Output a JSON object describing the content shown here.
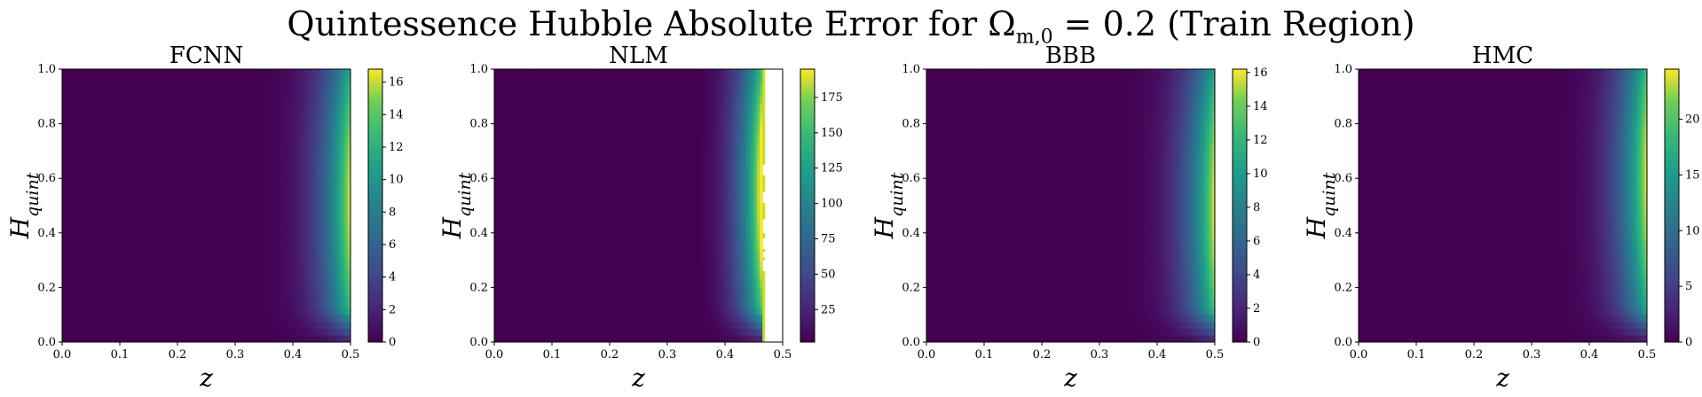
{
  "figure_title": "Quintessence Hubble Absolute Error for Ωm,0 = 0.2 (Train Region)",
  "chart_data": [
    {
      "type": "heatmap",
      "title": "FCNN",
      "xlabel": "z",
      "ylabel": "Hquint",
      "xlim": [
        0.0,
        0.5
      ],
      "ylim": [
        0.0,
        1.0
      ],
      "x_ticks": [
        "0.0",
        "0.1",
        "0.2",
        "0.3",
        "0.4",
        "0.5"
      ],
      "y_ticks": [
        "0.0",
        "0.2",
        "0.4",
        "0.6",
        "0.8",
        "1.0"
      ],
      "colorbar": {
        "min": 0,
        "max": 16.8,
        "ticks": [
          0,
          2,
          4,
          6,
          8,
          10,
          12,
          14,
          16
        ]
      },
      "colormap": "viridis",
      "peak": {
        "z": 0.5,
        "H": 0.52,
        "value": 16.8
      },
      "missing_from_z": null,
      "missing_segments": []
    },
    {
      "type": "heatmap",
      "title": "NLM",
      "xlabel": "z",
      "ylabel": "Hquint",
      "xlim": [
        0.0,
        0.5
      ],
      "ylim": [
        0.0,
        1.0
      ],
      "x_ticks": [
        "0.0",
        "0.1",
        "0.2",
        "0.3",
        "0.4",
        "0.5"
      ],
      "y_ticks": [
        "0.0",
        "0.2",
        "0.4",
        "0.6",
        "0.8",
        "1.0"
      ],
      "colorbar": {
        "min": 2,
        "max": 195,
        "ticks": [
          25,
          50,
          75,
          100,
          125,
          150,
          175
        ]
      },
      "colormap": "viridis",
      "peak": {
        "z": 0.46,
        "H": 0.55,
        "value": 195
      },
      "missing_from_z": 0.465,
      "missing_segments": [
        [
          0.0,
          0.26
        ],
        [
          0.3,
          0.31
        ],
        [
          0.33,
          0.34
        ],
        [
          0.38,
          0.4
        ],
        [
          0.45,
          0.51
        ],
        [
          0.55,
          0.61
        ],
        [
          0.65,
          1.0
        ]
      ]
    },
    {
      "type": "heatmap",
      "title": "BBB",
      "xlabel": "z",
      "ylabel": "Hquint",
      "xlim": [
        0.0,
        0.5
      ],
      "ylim": [
        0.0,
        1.0
      ],
      "x_ticks": [
        "0.0",
        "0.1",
        "0.2",
        "0.3",
        "0.4",
        "0.5"
      ],
      "y_ticks": [
        "0.0",
        "0.2",
        "0.4",
        "0.6",
        "0.8",
        "1.0"
      ],
      "colorbar": {
        "min": 0,
        "max": 16.2,
        "ticks": [
          0,
          2,
          4,
          6,
          8,
          10,
          12,
          14,
          16
        ]
      },
      "colormap": "viridis",
      "peak": {
        "z": 0.5,
        "H": 0.5,
        "value": 16.2
      },
      "missing_from_z": null,
      "missing_segments": []
    },
    {
      "type": "heatmap",
      "title": "HMC",
      "xlabel": "z",
      "ylabel": "Hquint",
      "xlim": [
        0.0,
        0.5
      ],
      "ylim": [
        0.0,
        1.0
      ],
      "x_ticks": [
        "0.0",
        "0.1",
        "0.2",
        "0.3",
        "0.4",
        "0.5"
      ],
      "y_ticks": [
        "0.0",
        "0.2",
        "0.4",
        "0.6",
        "0.8",
        "1.0"
      ],
      "colorbar": {
        "min": 0,
        "max": 24.5,
        "ticks": [
          0,
          5,
          10,
          15,
          20
        ]
      },
      "colormap": "viridis",
      "peak": {
        "z": 0.5,
        "H": 0.6,
        "value": 24.5
      },
      "missing_from_z": null,
      "missing_segments": []
    }
  ]
}
